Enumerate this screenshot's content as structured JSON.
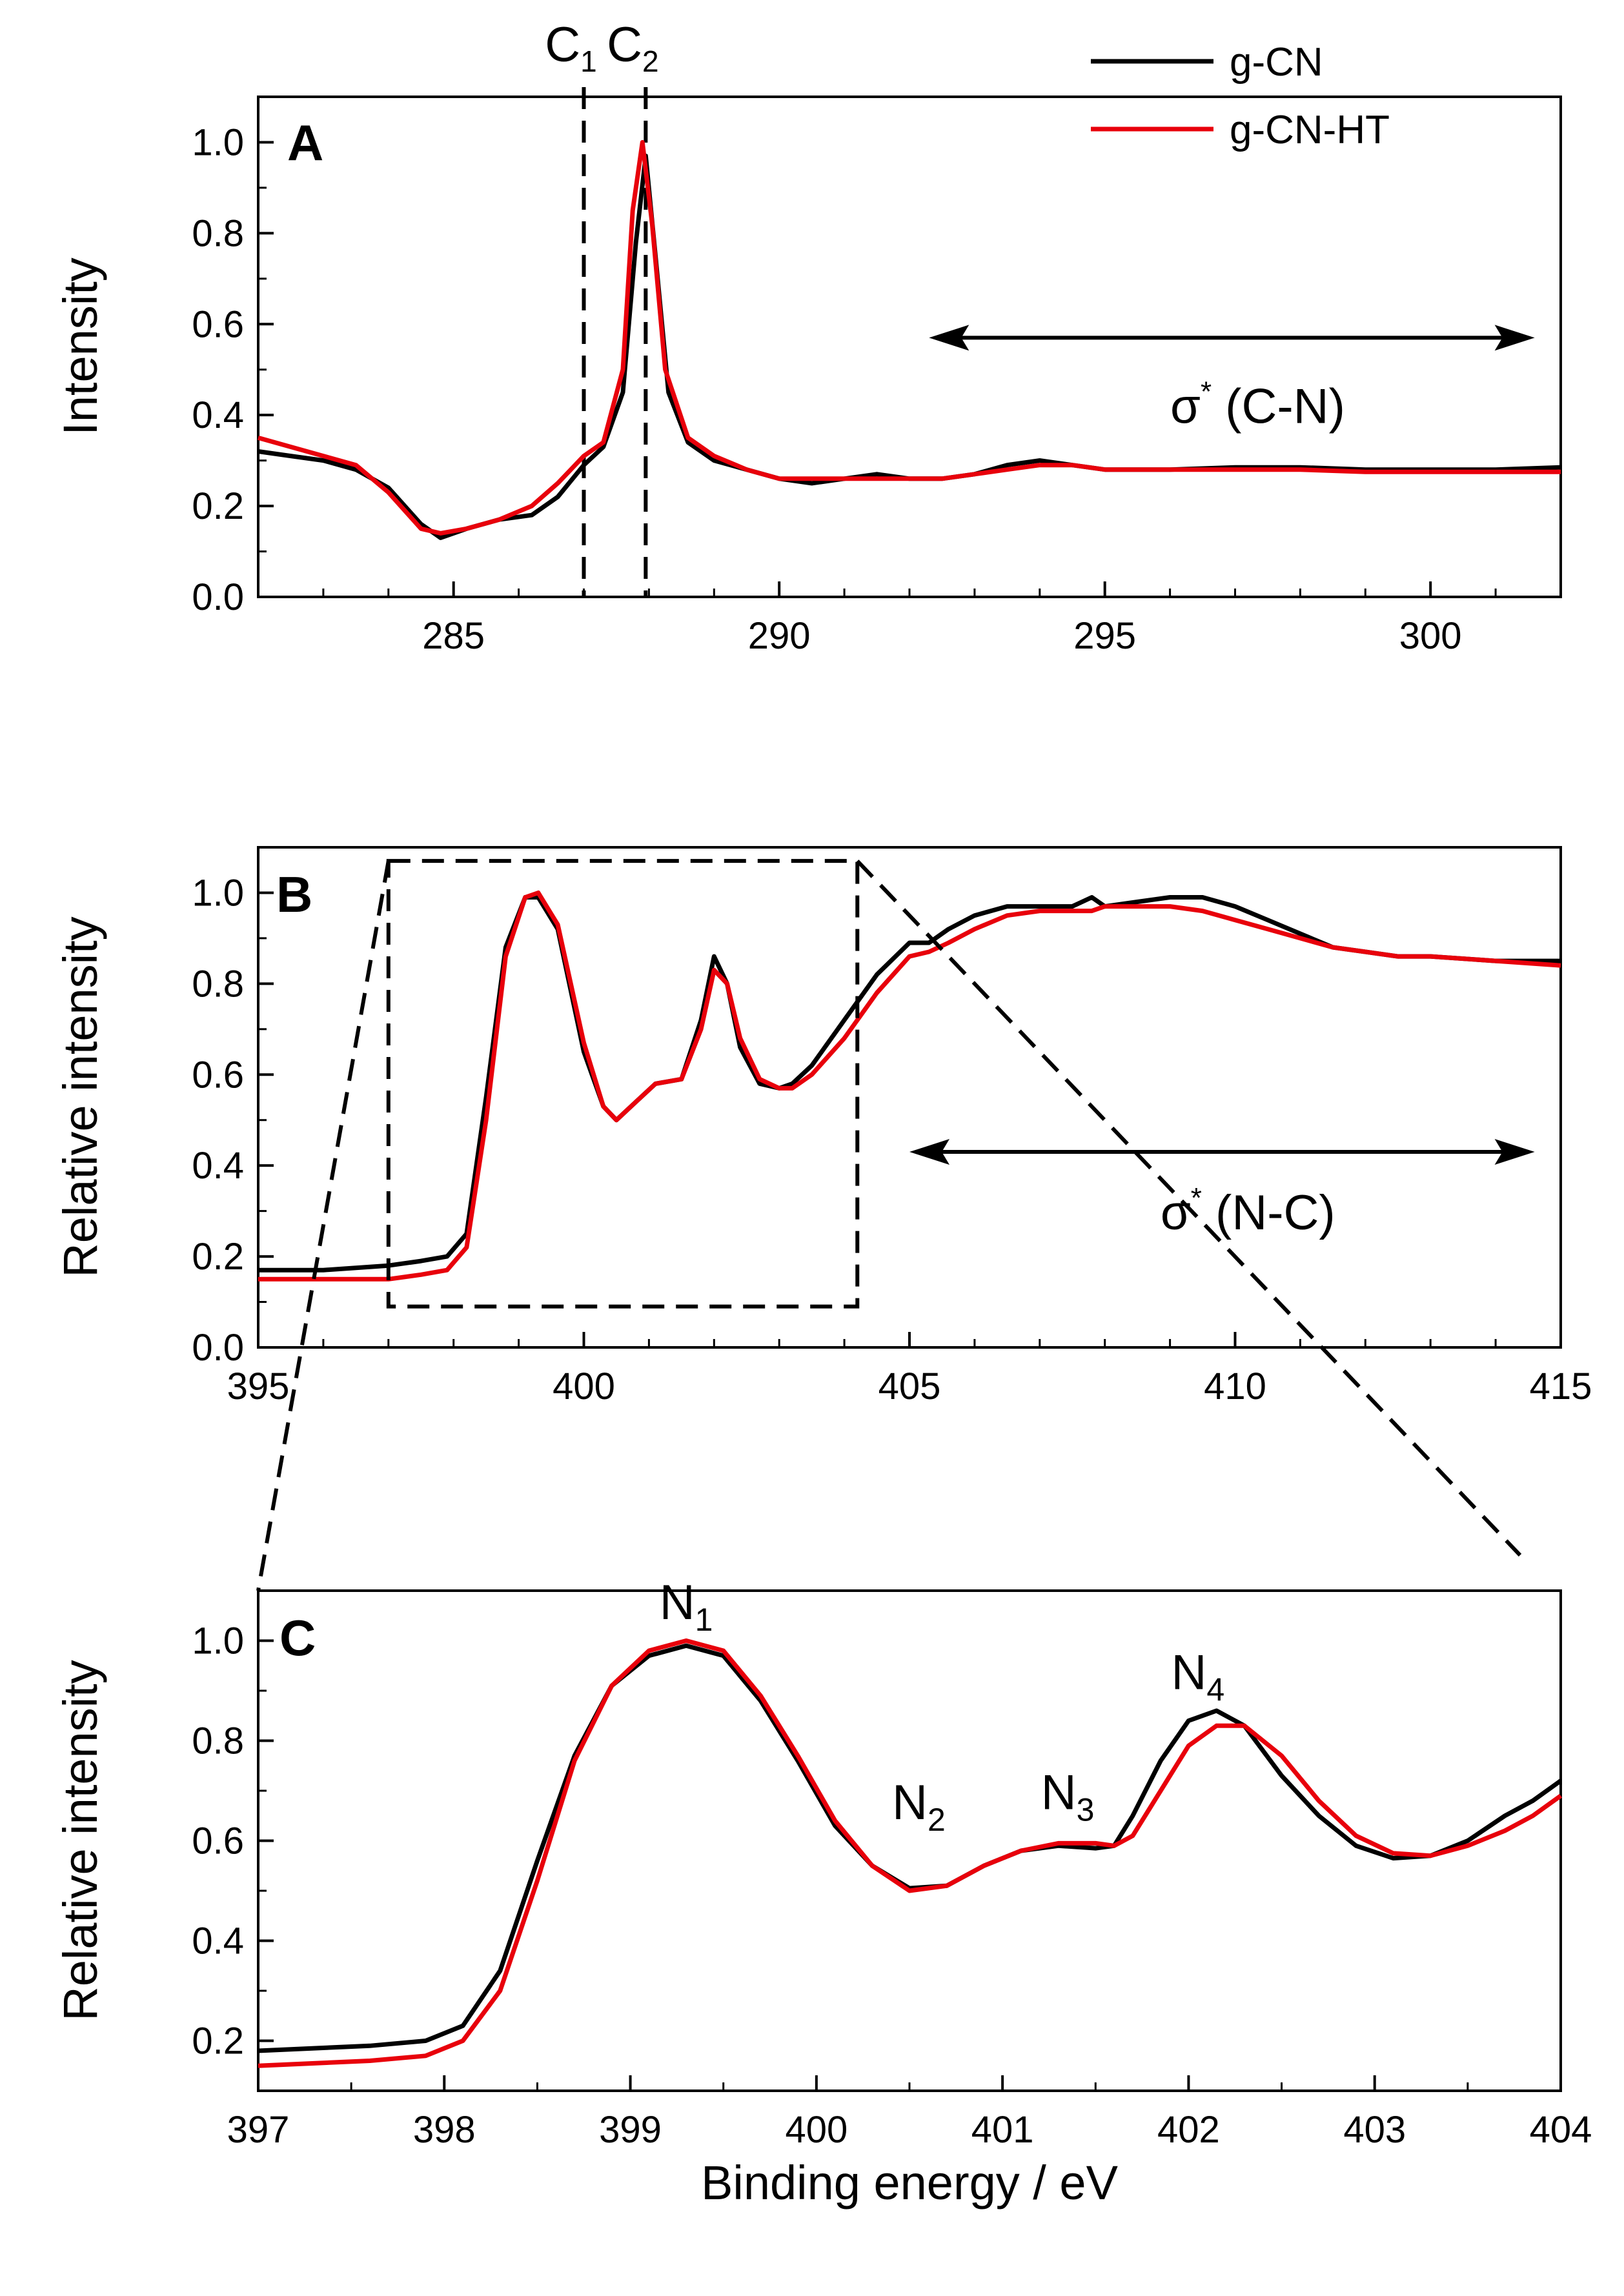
{
  "chart_data": [
    {
      "panel": "A",
      "type": "line",
      "xlabel": "",
      "ylabel": "Intensity",
      "xlim": [
        282,
        302
      ],
      "ylim": [
        0,
        1.1
      ],
      "xticks": [
        285,
        290,
        295,
        300
      ],
      "yticks": [
        0.0,
        0.2,
        0.4,
        0.6,
        0.8,
        1.0
      ],
      "legend": {
        "position": "top-right",
        "entries": [
          "g-CN",
          "g-CN-HT"
        ]
      },
      "series": [
        {
          "name": "g-CN",
          "color": "#000000",
          "x": [
            282,
            282.5,
            283,
            283.5,
            284,
            284.5,
            284.8,
            285.2,
            285.7,
            286.2,
            286.6,
            287,
            287.3,
            287.6,
            287.8,
            287.95,
            288.1,
            288.3,
            288.6,
            289,
            289.5,
            290,
            290.5,
            291,
            291.5,
            292,
            292.5,
            293,
            293.5,
            294,
            294.5,
            295,
            296,
            297,
            298,
            299,
            300,
            301,
            302
          ],
          "y": [
            0.32,
            0.31,
            0.3,
            0.28,
            0.24,
            0.16,
            0.13,
            0.15,
            0.17,
            0.18,
            0.22,
            0.29,
            0.33,
            0.45,
            0.78,
            0.97,
            0.75,
            0.45,
            0.34,
            0.3,
            0.28,
            0.26,
            0.25,
            0.26,
            0.27,
            0.26,
            0.26,
            0.27,
            0.29,
            0.3,
            0.29,
            0.28,
            0.28,
            0.285,
            0.285,
            0.28,
            0.28,
            0.28,
            0.285
          ]
        },
        {
          "name": "g-CN-HT",
          "color": "#e8000b",
          "x": [
            282,
            282.5,
            283,
            283.5,
            284,
            284.5,
            284.8,
            285.2,
            285.7,
            286.2,
            286.6,
            287,
            287.3,
            287.6,
            287.75,
            287.9,
            288.05,
            288.25,
            288.6,
            289,
            289.5,
            290,
            290.5,
            291,
            291.5,
            292,
            292.5,
            293,
            293.5,
            294,
            294.5,
            295,
            296,
            297,
            298,
            299,
            300,
            301,
            302
          ],
          "y": [
            0.35,
            0.33,
            0.31,
            0.29,
            0.23,
            0.15,
            0.14,
            0.15,
            0.17,
            0.2,
            0.25,
            0.31,
            0.34,
            0.5,
            0.85,
            1.0,
            0.82,
            0.5,
            0.35,
            0.31,
            0.28,
            0.26,
            0.26,
            0.26,
            0.26,
            0.26,
            0.26,
            0.27,
            0.28,
            0.29,
            0.29,
            0.28,
            0.28,
            0.28,
            0.28,
            0.275,
            0.275,
            0.275,
            0.275
          ]
        }
      ],
      "vlines": [
        {
          "x": 287.0,
          "label": "C",
          "sub": "1"
        },
        {
          "x": 287.95,
          "label": "C",
          "sub": "2"
        }
      ],
      "range_arrow": {
        "x1": 292.3,
        "x2": 301.6,
        "y": 0.57,
        "label": "σ",
        "sup": "*",
        "suffix": " (C-N)"
      }
    },
    {
      "panel": "B",
      "type": "line",
      "xlabel": "",
      "ylabel": "Relative intensity",
      "xlim": [
        395,
        415
      ],
      "ylim": [
        0,
        1.1
      ],
      "xticks": [
        395,
        400,
        405,
        410,
        415
      ],
      "yticks": [
        0.0,
        0.2,
        0.4,
        0.6,
        0.8,
        1.0
      ],
      "series": [
        {
          "name": "g-CN",
          "color": "#000000",
          "x": [
            395,
            396,
            397,
            397.5,
            397.9,
            398.2,
            398.5,
            398.8,
            399.1,
            399.3,
            399.6,
            400,
            400.3,
            400.5,
            400.8,
            401.1,
            401.5,
            401.8,
            402,
            402.2,
            402.4,
            402.7,
            403,
            403.2,
            403.5,
            404,
            404.5,
            405,
            405.3,
            405.6,
            406,
            406.5,
            407,
            407.5,
            407.8,
            408,
            408.5,
            409,
            409.5,
            410,
            410.5,
            411,
            411.5,
            412,
            412.5,
            413,
            414,
            415
          ],
          "y": [
            0.17,
            0.17,
            0.18,
            0.19,
            0.2,
            0.25,
            0.55,
            0.88,
            0.99,
            0.99,
            0.92,
            0.65,
            0.53,
            0.5,
            0.54,
            0.58,
            0.59,
            0.72,
            0.86,
            0.8,
            0.66,
            0.58,
            0.57,
            0.58,
            0.62,
            0.72,
            0.82,
            0.89,
            0.89,
            0.92,
            0.95,
            0.97,
            0.97,
            0.97,
            0.99,
            0.97,
            0.98,
            0.99,
            0.99,
            0.97,
            0.94,
            0.91,
            0.88,
            0.87,
            0.86,
            0.86,
            0.85,
            0.85
          ]
        },
        {
          "name": "g-CN-HT",
          "color": "#e8000b",
          "x": [
            395,
            396,
            397,
            397.5,
            397.9,
            398.2,
            398.5,
            398.8,
            399.1,
            399.3,
            399.6,
            400,
            400.3,
            400.5,
            400.8,
            401.1,
            401.5,
            401.8,
            402,
            402.2,
            402.4,
            402.7,
            403,
            403.2,
            403.5,
            404,
            404.5,
            405,
            405.3,
            405.6,
            406,
            406.5,
            407,
            407.5,
            407.8,
            408,
            408.5,
            409,
            409.5,
            410,
            410.5,
            411,
            411.5,
            412,
            412.5,
            413,
            414,
            415
          ],
          "y": [
            0.15,
            0.15,
            0.15,
            0.16,
            0.17,
            0.22,
            0.5,
            0.86,
            0.99,
            1.0,
            0.93,
            0.67,
            0.53,
            0.5,
            0.54,
            0.58,
            0.59,
            0.7,
            0.83,
            0.8,
            0.68,
            0.59,
            0.57,
            0.57,
            0.6,
            0.68,
            0.78,
            0.86,
            0.87,
            0.89,
            0.92,
            0.95,
            0.96,
            0.96,
            0.96,
            0.97,
            0.97,
            0.97,
            0.96,
            0.94,
            0.92,
            0.9,
            0.88,
            0.87,
            0.86,
            0.86,
            0.85,
            0.84
          ]
        }
      ],
      "zoom_box": {
        "x1": 397,
        "x2": 404.2,
        "y1": 0.09,
        "y2": 1.07
      },
      "range_arrow": {
        "x1": 405,
        "x2": 414.6,
        "y": 0.43,
        "label": "σ",
        "sup": "*",
        "suffix": " (N-C)"
      }
    },
    {
      "panel": "C",
      "type": "line",
      "xlabel": "Binding energy / eV",
      "ylabel": "Relative intensity",
      "xlim": [
        397,
        404
      ],
      "ylim": [
        0.1,
        1.1
      ],
      "xticks": [
        397,
        398,
        399,
        400,
        401,
        402,
        403,
        404
      ],
      "yticks": [
        0.2,
        0.4,
        0.6,
        0.8,
        1.0
      ],
      "series": [
        {
          "name": "g-CN",
          "color": "#000000",
          "x": [
            397,
            397.3,
            397.6,
            397.9,
            398.1,
            398.3,
            398.5,
            398.7,
            398.9,
            399.1,
            399.3,
            399.5,
            399.7,
            399.9,
            400.1,
            400.3,
            400.5,
            400.7,
            400.9,
            401.1,
            401.3,
            401.5,
            401.6,
            401.7,
            401.85,
            402,
            402.15,
            402.3,
            402.5,
            402.7,
            402.9,
            403.1,
            403.3,
            403.5,
            403.7,
            403.85,
            404
          ],
          "y": [
            0.18,
            0.185,
            0.19,
            0.2,
            0.23,
            0.34,
            0.56,
            0.77,
            0.91,
            0.97,
            0.99,
            0.97,
            0.88,
            0.76,
            0.63,
            0.55,
            0.505,
            0.51,
            0.55,
            0.58,
            0.59,
            0.585,
            0.59,
            0.65,
            0.76,
            0.84,
            0.86,
            0.83,
            0.73,
            0.65,
            0.59,
            0.565,
            0.57,
            0.6,
            0.65,
            0.68,
            0.72
          ]
        },
        {
          "name": "g-CN-HT",
          "color": "#e8000b",
          "x": [
            397,
            397.3,
            397.6,
            397.9,
            398.1,
            398.3,
            398.5,
            398.7,
            398.9,
            399.1,
            399.3,
            399.5,
            399.7,
            399.9,
            400.1,
            400.3,
            400.5,
            400.7,
            400.9,
            401.1,
            401.3,
            401.5,
            401.6,
            401.7,
            401.85,
            402,
            402.15,
            402.3,
            402.5,
            402.7,
            402.9,
            403.1,
            403.3,
            403.5,
            403.7,
            403.85,
            404
          ],
          "y": [
            0.15,
            0.155,
            0.16,
            0.17,
            0.2,
            0.3,
            0.52,
            0.76,
            0.91,
            0.98,
            1.0,
            0.98,
            0.89,
            0.77,
            0.64,
            0.55,
            0.5,
            0.51,
            0.55,
            0.58,
            0.595,
            0.595,
            0.59,
            0.61,
            0.7,
            0.79,
            0.83,
            0.83,
            0.77,
            0.68,
            0.61,
            0.575,
            0.57,
            0.59,
            0.62,
            0.65,
            0.69
          ]
        }
      ],
      "peak_labels": [
        {
          "label": "N",
          "sub": "1",
          "x": 399.3,
          "y": 1.02
        },
        {
          "label": "N",
          "sub": "2",
          "x": 400.55,
          "y": 0.62
        },
        {
          "label": "N",
          "sub": "3",
          "x": 401.35,
          "y": 0.64
        },
        {
          "label": "N",
          "sub": "4",
          "x": 402.05,
          "y": 0.88
        }
      ]
    }
  ]
}
